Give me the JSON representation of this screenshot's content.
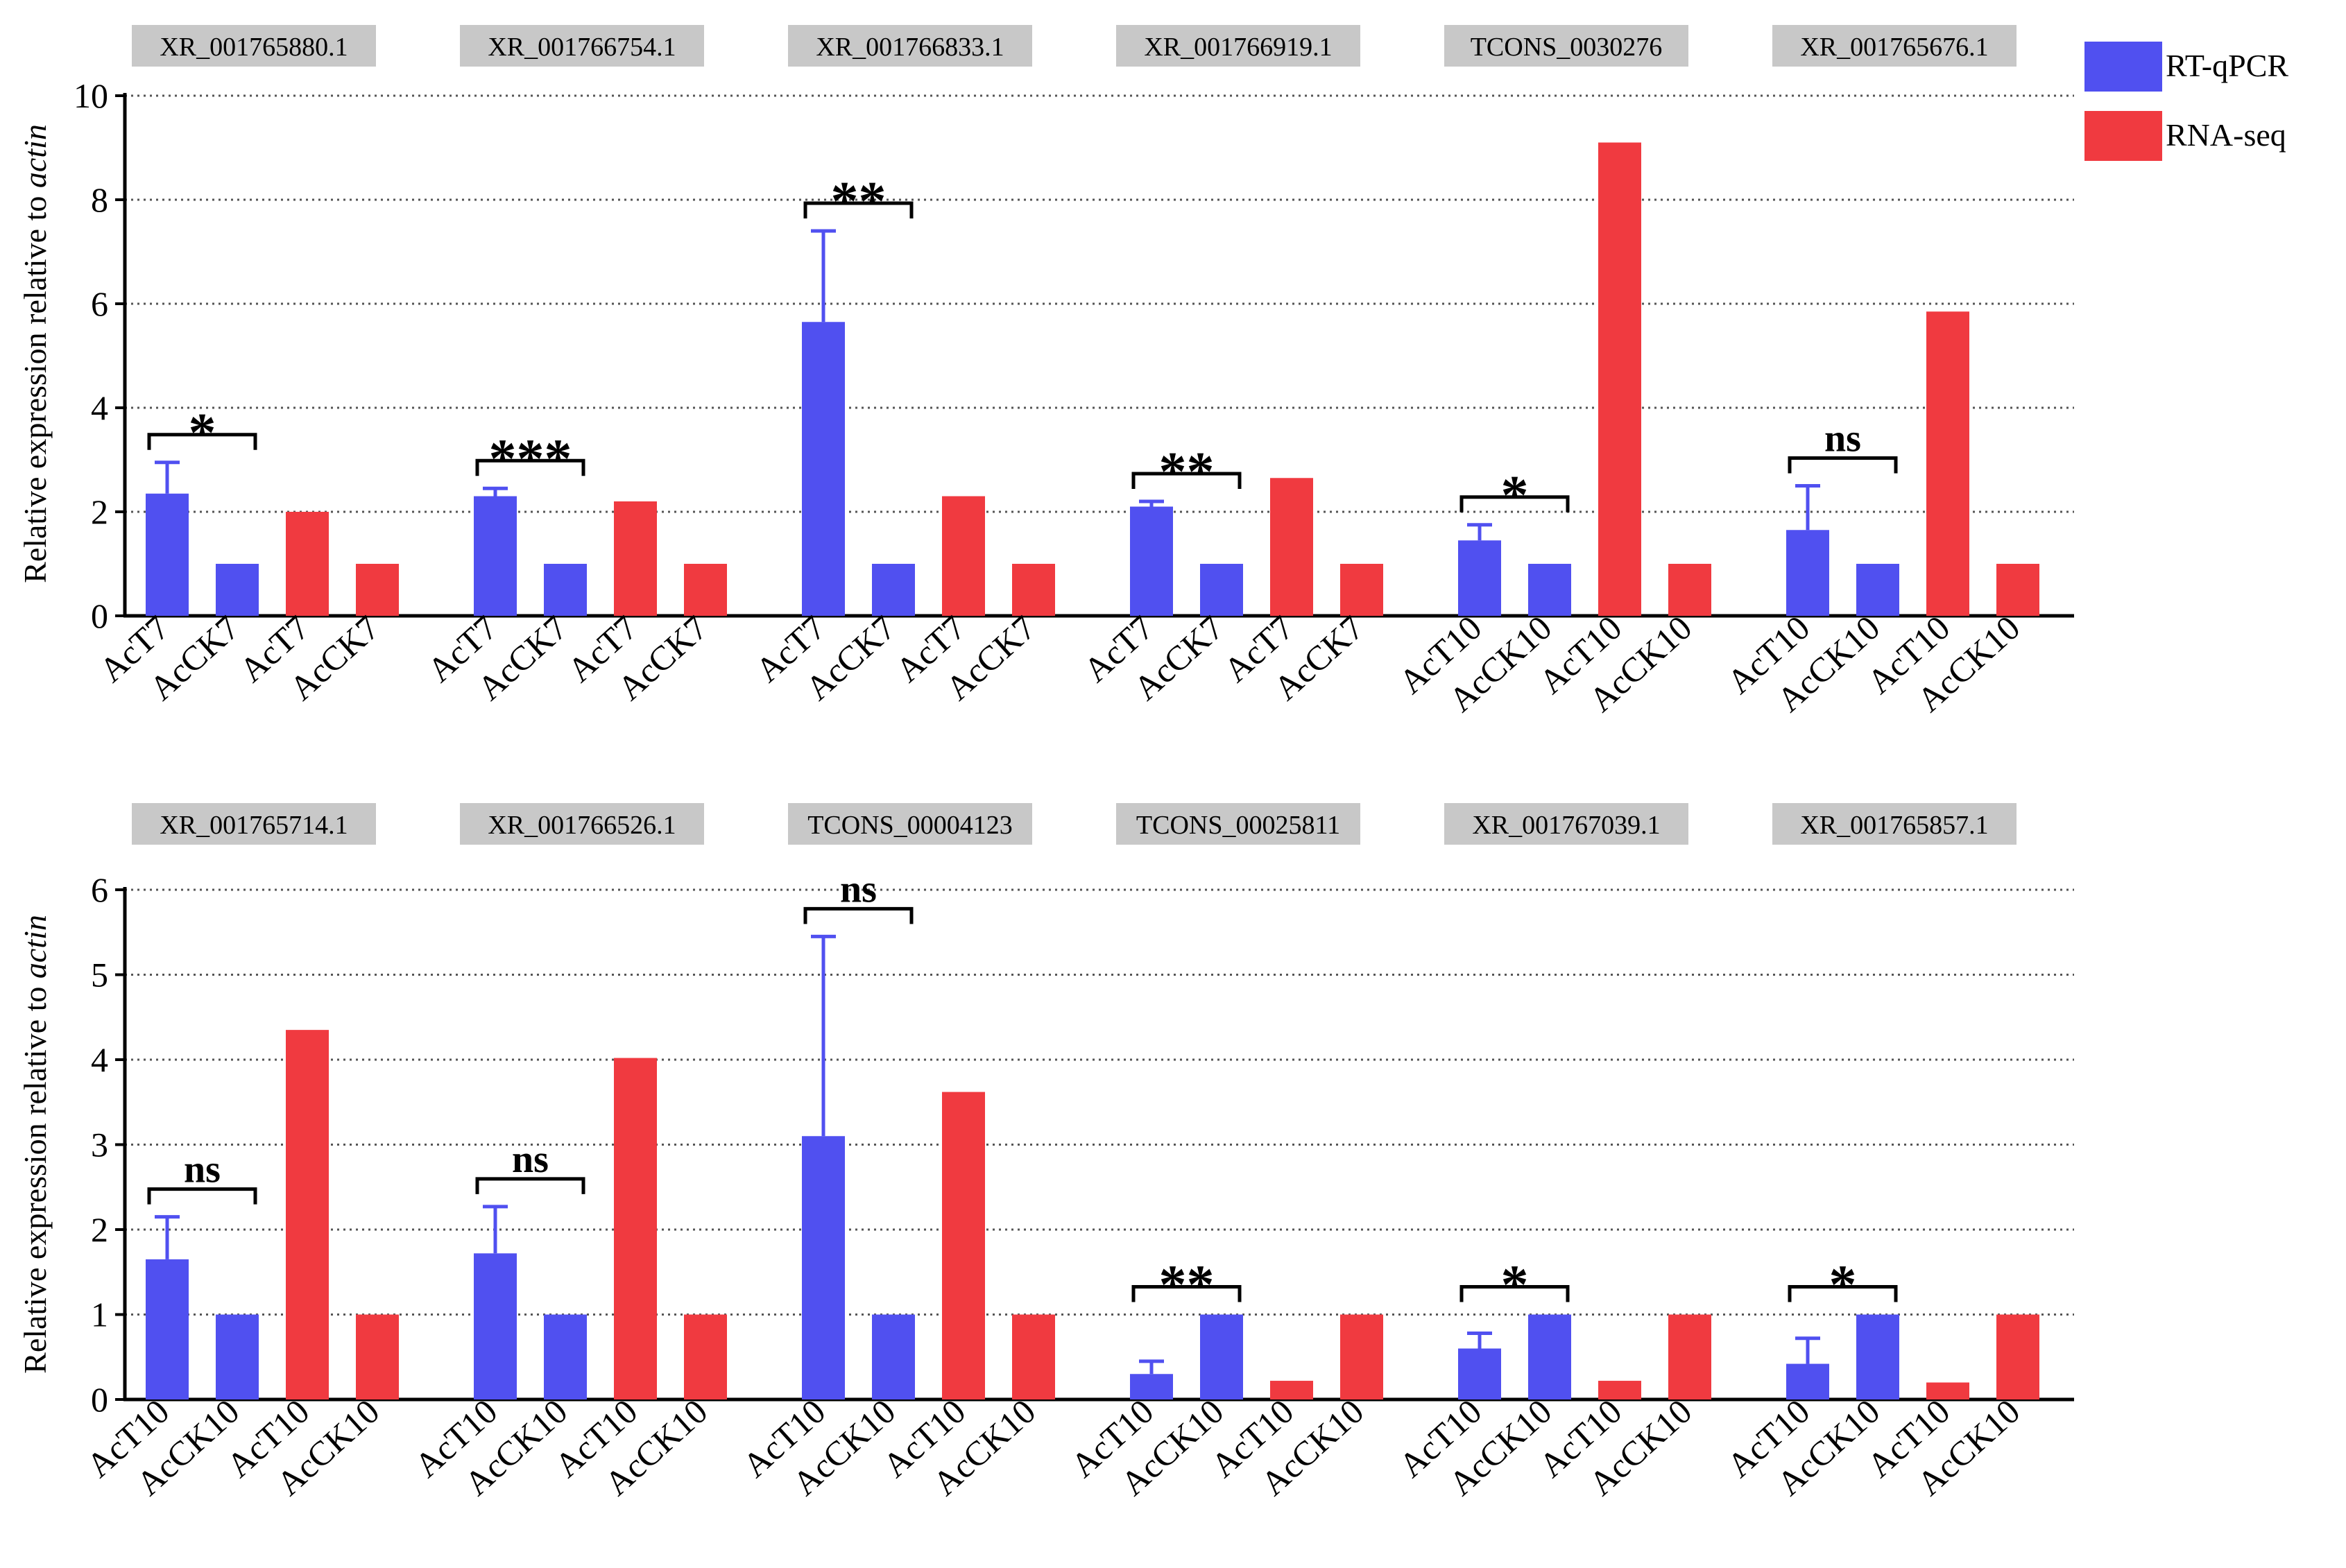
{
  "legend": [
    {
      "label": "RT-qPCR",
      "color": "#5050f0"
    },
    {
      "label": "RNA-seq",
      "color": "#f03a40"
    }
  ],
  "colors": {
    "qpcr": "#5050f0",
    "rnaseq": "#f03a40",
    "gene_box": "#c8c8c8",
    "grid": "#555555"
  },
  "ylabel_prefix": "Relative expression relative to ",
  "ylabel_italic": "actin",
  "chart_data": [
    {
      "type": "bar",
      "ylim": [
        0,
        10
      ],
      "yticks": [
        0,
        2,
        4,
        6,
        8,
        10
      ],
      "ylabel": "Relative expression relative to actin",
      "series": [
        {
          "name": "RT-qPCR",
          "treatment": [
            2.35,
            2.3,
            5.65,
            2.1,
            1.45,
            1.65
          ],
          "control": [
            1,
            1,
            1,
            1,
            1,
            1
          ],
          "error": [
            0.6,
            0.15,
            1.75,
            0.1,
            0.3,
            0.85
          ]
        },
        {
          "name": "RNA-seq",
          "treatment": [
            2.0,
            2.2,
            2.3,
            2.65,
            9.1,
            5.85
          ],
          "control": [
            1,
            1,
            1,
            1,
            1,
            1
          ]
        }
      ],
      "groups": [
        {
          "gene": "XR_001765880.1",
          "labels": [
            "AcT7",
            "AcCK7",
            "AcT7",
            "AcCK7"
          ],
          "sig": "*"
        },
        {
          "gene": "XR_001766754.1",
          "labels": [
            "AcT7",
            "AcCK7",
            "AcT7",
            "AcCK7"
          ],
          "sig": "***"
        },
        {
          "gene": "XR_001766833.1",
          "labels": [
            "AcT7",
            "AcCK7",
            "AcT7",
            "AcCK7"
          ],
          "sig": "**"
        },
        {
          "gene": "XR_001766919.1",
          "labels": [
            "AcT7",
            "AcCK7",
            "AcT7",
            "AcCK7"
          ],
          "sig": "**"
        },
        {
          "gene": "TCONS_0030276",
          "labels": [
            "AcT10",
            "AcCK10",
            "AcT10",
            "AcCK10"
          ],
          "sig": "*"
        },
        {
          "gene": "XR_001765676.1",
          "labels": [
            "AcT10",
            "AcCK10",
            "AcT10",
            "AcCK10"
          ],
          "sig": "ns"
        }
      ]
    },
    {
      "type": "bar",
      "ylim": [
        0,
        6
      ],
      "yticks": [
        0,
        1,
        2,
        3,
        4,
        5,
        6
      ],
      "ylabel": "Relative expression relative to actin",
      "series": [
        {
          "name": "RT-qPCR",
          "treatment": [
            1.65,
            1.72,
            3.1,
            0.3,
            0.6,
            0.42
          ],
          "control": [
            1,
            1,
            1,
            1,
            1,
            1
          ],
          "error": [
            0.5,
            0.55,
            2.35,
            0.15,
            0.18,
            0.3
          ]
        },
        {
          "name": "RNA-seq",
          "treatment": [
            4.35,
            4.02,
            3.62,
            0.22,
            0.22,
            0.2
          ],
          "control": [
            1,
            1,
            1,
            1,
            1,
            1
          ]
        }
      ],
      "groups": [
        {
          "gene": "XR_001765714.1",
          "labels": [
            "AcT10",
            "AcCK10",
            "AcT10",
            "AcCK10"
          ],
          "sig": "ns"
        },
        {
          "gene": "XR_001766526.1",
          "labels": [
            "AcT10",
            "AcCK10",
            "AcT10",
            "AcCK10"
          ],
          "sig": "ns"
        },
        {
          "gene": "TCONS_00004123",
          "labels": [
            "AcT10",
            "AcCK10",
            "AcT10",
            "AcCK10"
          ],
          "sig": "ns"
        },
        {
          "gene": "TCONS_00025811",
          "labels": [
            "AcT10",
            "AcCK10",
            "AcT10",
            "AcCK10"
          ],
          "sig": "**"
        },
        {
          "gene": "XR_001767039.1",
          "labels": [
            "AcT10",
            "AcCK10",
            "AcT10",
            "AcCK10"
          ],
          "sig": "*"
        },
        {
          "gene": "XR_001765857.1",
          "labels": [
            "AcT10",
            "AcCK10",
            "AcT10",
            "AcCK10"
          ],
          "sig": "*"
        }
      ]
    }
  ]
}
